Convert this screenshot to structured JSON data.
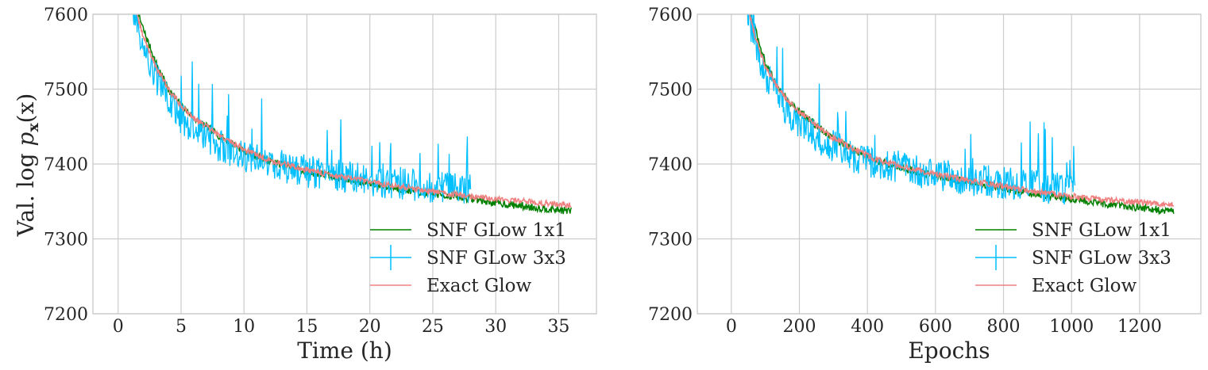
{
  "chart_data": [
    {
      "type": "line",
      "title": "",
      "xlabel": "Time (h)",
      "ylabel_prefix": "Val. log ",
      "ylabel_math": "p",
      "ylabel_sub": "x",
      "ylabel_arg": "(x)",
      "xlim": [
        -2,
        38
      ],
      "ylim": [
        7600,
        7200
      ],
      "y_inverted": true,
      "grid": true,
      "legend_position": "lower-right",
      "xticks": [
        0,
        5,
        10,
        15,
        20,
        25,
        30,
        35
      ],
      "yticks": [
        7200,
        7300,
        7400,
        7500,
        7600
      ],
      "series": [
        {
          "name": "SNF GLow 1x1",
          "color": "#008000",
          "noise": 5,
          "x": [
            1.2,
            2,
            3,
            4,
            5,
            6,
            8,
            10,
            12,
            15,
            18,
            20,
            22,
            25,
            28,
            30,
            33,
            36
          ],
          "y": [
            7620,
            7580,
            7535,
            7500,
            7478,
            7462,
            7438,
            7418,
            7404,
            7390,
            7380,
            7374,
            7368,
            7360,
            7354,
            7348,
            7342,
            7337
          ]
        },
        {
          "name": "SNF GLow 3x3",
          "color": "#00bfff",
          "noise": 22,
          "x": [
            1.2,
            2,
            3,
            4,
            5,
            6,
            8,
            10,
            12,
            15,
            18,
            20,
            22,
            25,
            28
          ],
          "y": [
            7610,
            7555,
            7515,
            7485,
            7460,
            7445,
            7425,
            7410,
            7400,
            7390,
            7383,
            7378,
            7375,
            7370,
            7365
          ]
        },
        {
          "name": "Exact Glow",
          "color": "#f08080",
          "noise": 4,
          "x": [
            1.2,
            2,
            3,
            4,
            5,
            6,
            8,
            10,
            12,
            15,
            18,
            20,
            22,
            25,
            28,
            30,
            33,
            36
          ],
          "y": [
            7615,
            7570,
            7530,
            7500,
            7478,
            7462,
            7438,
            7420,
            7405,
            7392,
            7382,
            7376,
            7371,
            7363,
            7357,
            7353,
            7349,
            7345
          ]
        }
      ]
    },
    {
      "type": "line",
      "title": "",
      "xlabel": "Epochs",
      "ylabel": "",
      "xlim": [
        -100,
        1380
      ],
      "ylim": [
        7600,
        7200
      ],
      "y_inverted": true,
      "grid": true,
      "legend_position": "lower-right",
      "xticks": [
        0,
        200,
        400,
        600,
        800,
        1000,
        1200
      ],
      "yticks": [
        7200,
        7300,
        7400,
        7500,
        7600
      ],
      "series": [
        {
          "name": "SNF GLow 1x1",
          "color": "#008000",
          "noise": 5,
          "x": [
            45,
            70,
            100,
            140,
            180,
            220,
            290,
            360,
            430,
            540,
            650,
            720,
            790,
            900,
            1000,
            1080,
            1190,
            1300
          ],
          "y": [
            7620,
            7580,
            7535,
            7500,
            7478,
            7462,
            7438,
            7418,
            7404,
            7390,
            7380,
            7374,
            7368,
            7360,
            7354,
            7348,
            7342,
            7337
          ]
        },
        {
          "name": "SNF GLow 3x3",
          "color": "#00bfff",
          "noise": 22,
          "x": [
            45,
            70,
            100,
            140,
            180,
            220,
            290,
            360,
            430,
            540,
            650,
            720,
            790,
            900,
            1010
          ],
          "y": [
            7610,
            7555,
            7515,
            7485,
            7460,
            7445,
            7425,
            7410,
            7400,
            7390,
            7383,
            7378,
            7375,
            7370,
            7365
          ]
        },
        {
          "name": "Exact Glow",
          "color": "#f08080",
          "noise": 4,
          "x": [
            45,
            70,
            100,
            140,
            180,
            220,
            290,
            360,
            430,
            540,
            650,
            720,
            790,
            900,
            1000,
            1080,
            1190,
            1300
          ],
          "y": [
            7615,
            7570,
            7530,
            7500,
            7478,
            7462,
            7438,
            7420,
            7405,
            7392,
            7382,
            7376,
            7371,
            7363,
            7357,
            7353,
            7349,
            7345
          ]
        }
      ]
    }
  ]
}
